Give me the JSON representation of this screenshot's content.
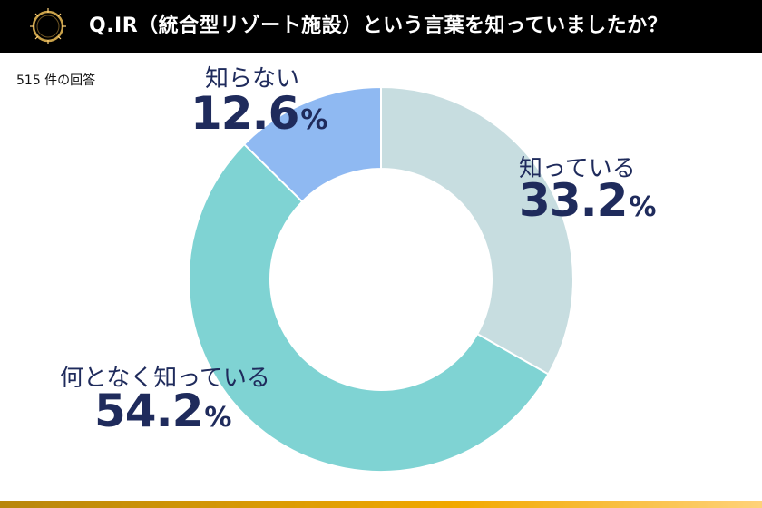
{
  "header": {
    "title": "Q.IR（統合型リゾート施設）という言葉を知っていましたか？"
  },
  "response_count": "515 件の回答",
  "colors": {
    "header_bg": "#000000",
    "label_text": "#1f2b5c",
    "footer_accent": "#f2a900"
  },
  "chart_data": {
    "type": "pie",
    "donut": true,
    "title": "",
    "slices": [
      {
        "label": "知っている",
        "value": 33.2,
        "display": "33.2",
        "unit": "%",
        "color": "#c7dde0"
      },
      {
        "label": "何となく知っている",
        "value": 54.2,
        "display": "54.2",
        "unit": "%",
        "color": "#7fd3d3"
      },
      {
        "label": "知らない",
        "value": 12.6,
        "display": "12.6",
        "unit": "%",
        "color": "#8fb9f2"
      }
    ]
  }
}
